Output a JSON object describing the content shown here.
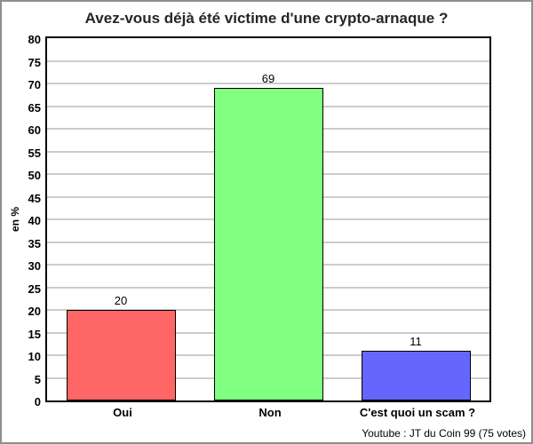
{
  "chart_data": {
    "type": "bar",
    "title": "Avez-vous déjà été victime d'une crypto-arnaque ?",
    "categories": [
      "Oui",
      "Non",
      "C'est quoi un scam ?"
    ],
    "values": [
      20,
      69,
      11
    ],
    "bar_colors": [
      "#ff6666",
      "#80ff80",
      "#6666ff"
    ],
    "value_labels": [
      "20",
      "69",
      "11"
    ],
    "xlabel": "",
    "ylabel": "en %",
    "ylim": [
      0,
      80
    ],
    "yticks": [
      0,
      5,
      10,
      15,
      20,
      25,
      30,
      35,
      40,
      45,
      50,
      55,
      60,
      65,
      70,
      75,
      80
    ],
    "grid": true,
    "legend": false,
    "grid_color": "#cccccc",
    "source": "Youtube : JT du Coin 99 (75 votes)"
  }
}
